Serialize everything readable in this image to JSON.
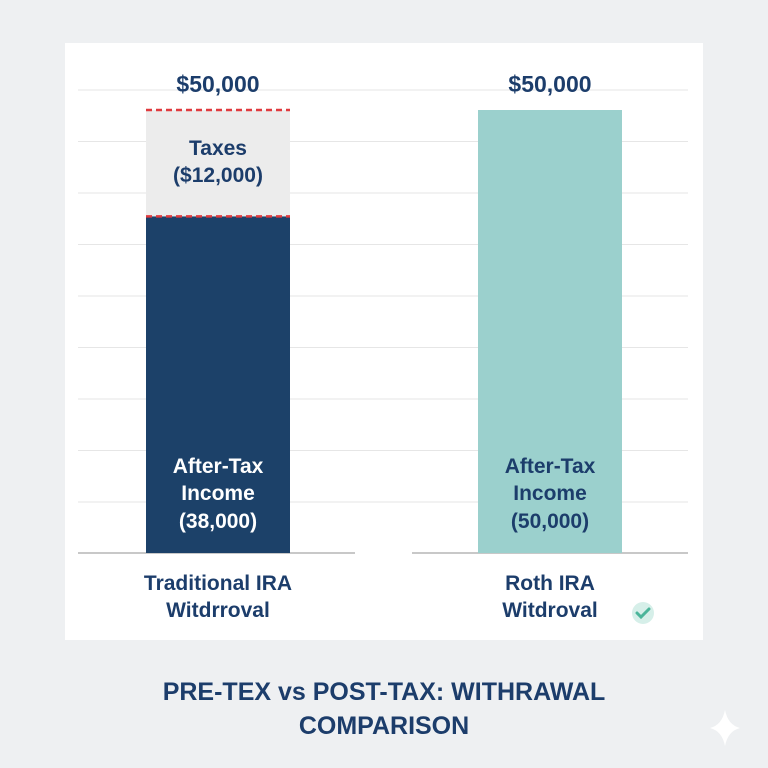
{
  "chart_data": {
    "type": "stacked-bar",
    "title": "PRE-TEX vs POST-TAX: WITHRAWAL COMPARISON",
    "categories": [
      "Traditional IRA Witdrroval",
      "Roth IRA Witdroval"
    ],
    "series": [
      {
        "name": "After-Tax Income",
        "colors": [
          "#1c4169",
          "#9bd0cd"
        ],
        "values": [
          38000,
          50000
        ],
        "value_labels": [
          "After-Tax Income (38,000)",
          "After-Tax Income (50,000)"
        ]
      },
      {
        "name": "Taxes",
        "color": "#ececec",
        "values": [
          12000,
          null
        ],
        "value_labels": [
          "Taxes ($12,000)",
          null
        ]
      }
    ],
    "totals": [
      50000,
      50000
    ],
    "total_labels": [
      "$50,000",
      "$50,000"
    ],
    "ylim": [
      0,
      50000
    ],
    "grid": true
  }
}
